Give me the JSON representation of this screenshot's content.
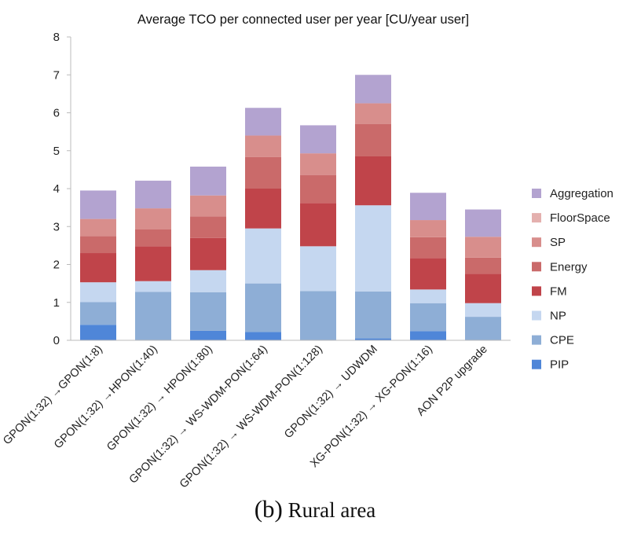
{
  "chart_data": {
    "type": "bar",
    "stacked": true,
    "title": "Average TCO per connected user per year [CU/year user]",
    "xlabel": "",
    "ylabel": "",
    "ylim": [
      0,
      8
    ],
    "yticks": [
      0,
      1,
      2,
      3,
      4,
      5,
      6,
      7,
      8
    ],
    "grid": false,
    "legend_position": "right",
    "categories": [
      "GPON(1:32) →GPON(1:8)",
      "GPON(1:32) →HPON(1:40)",
      "GPON(1:32) → HPON(1:80)",
      "GPON(1:32) → WS-WDM-PON(1:64)",
      "GPON(1:32) → WS-WDM-PON(1:128)",
      "GPON(1:32) → UDWDM",
      "XG-PON(1:32) → XG-PON(1:16)",
      "AON P2P upgrade"
    ],
    "series": [
      {
        "name": "PIP",
        "color": "#4f86d8",
        "values": [
          0.41,
          0.0,
          0.25,
          0.22,
          0.0,
          0.05,
          0.24,
          0.0
        ]
      },
      {
        "name": "CPE",
        "color": "#8eaed6",
        "values": [
          0.6,
          1.28,
          1.02,
          1.28,
          1.3,
          1.24,
          0.74,
          0.62
        ]
      },
      {
        "name": "NP",
        "color": "#c5d7f0",
        "values": [
          0.52,
          0.28,
          0.58,
          1.45,
          1.18,
          2.27,
          0.36,
          0.36
        ]
      },
      {
        "name": "FM",
        "color": "#c0444a",
        "values": [
          0.77,
          0.92,
          0.85,
          1.05,
          1.14,
          1.29,
          0.83,
          0.77
        ]
      },
      {
        "name": "Energy",
        "color": "#ca6a6a",
        "values": [
          0.45,
          0.45,
          0.57,
          0.83,
          0.74,
          0.85,
          0.55,
          0.43
        ]
      },
      {
        "name": "SP",
        "color": "#d88e8c",
        "values": [
          0.45,
          0.55,
          0.55,
          0.57,
          0.57,
          0.55,
          0.45,
          0.55
        ]
      },
      {
        "name": "FloorSpace",
        "color": "#e4b0ae",
        "values": [
          0.0,
          0.0,
          0.0,
          0.0,
          0.0,
          0.0,
          0.0,
          0.0
        ]
      },
      {
        "name": "Aggregation",
        "color": "#b3a3d0",
        "values": [
          0.75,
          0.73,
          0.76,
          0.73,
          0.74,
          0.75,
          0.72,
          0.72
        ]
      }
    ]
  },
  "caption": {
    "label": "(b)",
    "text": "Rural area"
  }
}
